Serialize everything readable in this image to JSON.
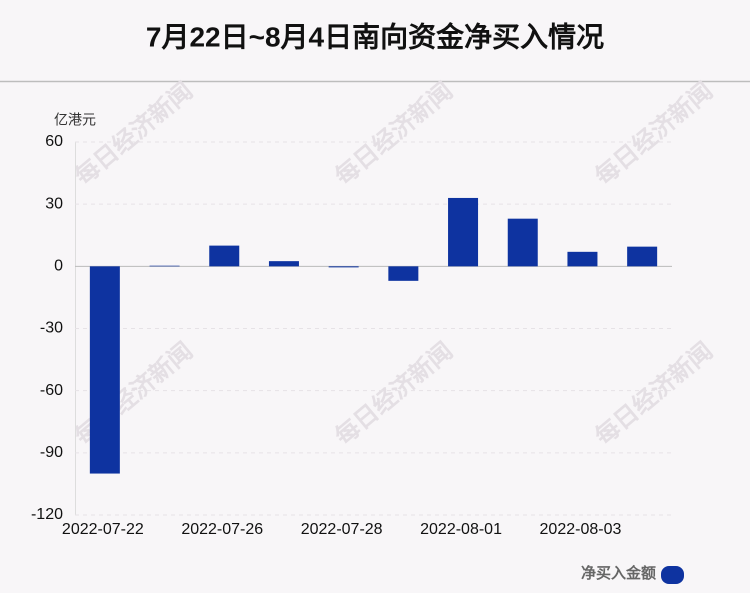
{
  "chart_data": {
    "type": "bar",
    "title": "7月22日~8月4日南向资金净买入情况",
    "y_unit": "亿港元",
    "watermark": "每日经济新闻",
    "categories": [
      "2022-07-22",
      null,
      "2022-07-26",
      null,
      "2022-07-28",
      null,
      "2022-08-01",
      null,
      "2022-08-03",
      null
    ],
    "series": [
      {
        "name": "净买入金额",
        "color": "#0e33a0",
        "values": [
          -100,
          0.3,
          10,
          2.5,
          -0.5,
          -7,
          33,
          23,
          7,
          9.5
        ]
      }
    ],
    "ylim": [
      -120,
      60
    ],
    "yticks": [
      -120,
      -90,
      -60,
      -30,
      0,
      30,
      60
    ],
    "grid": true
  }
}
